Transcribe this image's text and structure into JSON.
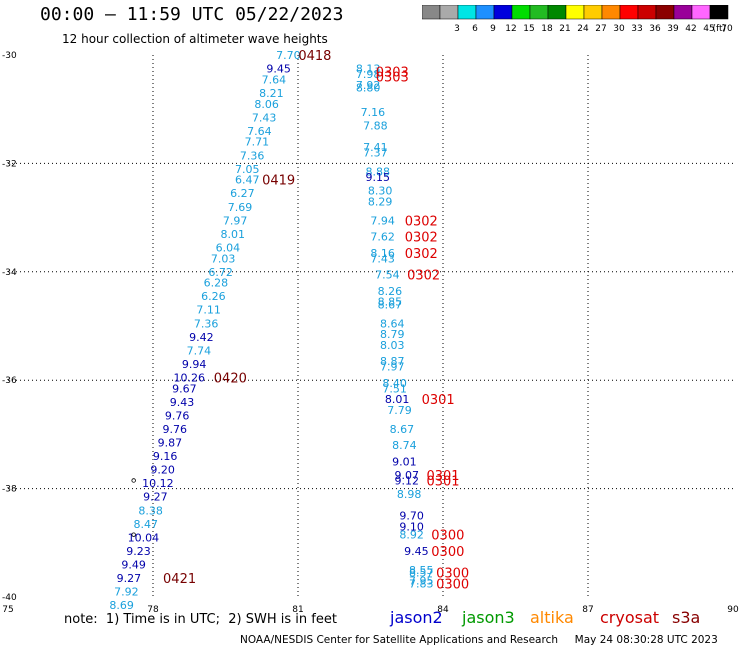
{
  "header": {
    "title": "00:00 – 11:59 UTC 05/22/2023",
    "subtitle": "12 hour collection of altimeter wave heights"
  },
  "colorbar": {
    "bins": [
      {
        "label": "",
        "color": "#888888"
      },
      {
        "label": "3",
        "color": "#aaaaaa"
      },
      {
        "label": "6",
        "color": "#00e5e5"
      },
      {
        "label": "9",
        "color": "#1e90ff"
      },
      {
        "label": "12",
        "color": "#0000dd"
      },
      {
        "label": "15",
        "color": "#00dd00"
      },
      {
        "label": "18",
        "color": "#22bb22"
      },
      {
        "label": "21",
        "color": "#008800"
      },
      {
        "label": "24",
        "color": "#ffff00"
      },
      {
        "label": "27",
        "color": "#ffcc00"
      },
      {
        "label": "30",
        "color": "#ff8800"
      },
      {
        "label": "33",
        "color": "#ff0000"
      },
      {
        "label": "36",
        "color": "#cc0000"
      },
      {
        "label": "39",
        "color": "#8b0000"
      },
      {
        "label": "42",
        "color": "#990099"
      },
      {
        "label": "45",
        "color": "#ff66ff"
      },
      {
        "label": "70",
        "color": "#000000"
      }
    ],
    "unit": "(ft)"
  },
  "legend": {
    "note": "note:  1) Time is in UTC;  2) SWH is in feet",
    "satellites": [
      {
        "name": "jason2",
        "color": "#0000cc"
      },
      {
        "name": "jason3",
        "color": "#009900"
      },
      {
        "name": "altika",
        "color": "#ff8800"
      },
      {
        "name": "cryosat",
        "color": "#cc0000"
      },
      {
        "name": "s3a",
        "color": "#880000"
      }
    ]
  },
  "credit": "NOAA/NESDIS Center for Satellite Applications and Research     May 24 08:30:28 UTC 2023",
  "colors": {
    "cyan_label": "#1aa0dc",
    "blue_label": "#0000aa",
    "red_time": "#dd0000",
    "dark_time": "#770000"
  },
  "chart_data": {
    "type": "scatter",
    "xlim": [
      75,
      90
    ],
    "ylim": [
      -40,
      -30
    ],
    "xticks": [
      "75",
      "78",
      "81",
      "84",
      "87",
      "90"
    ],
    "yticks": [
      "-30",
      "-32",
      "-34",
      "-36",
      "-38",
      "-40"
    ],
    "grid": true,
    "series": [
      {
        "points": [
          {
            "x": 80.8,
            "y": -30.0,
            "v": "7.70"
          },
          {
            "x": 80.6,
            "y": -30.25,
            "v": "9.45",
            "dark": true
          },
          {
            "x": 80.5,
            "y": -30.45,
            "v": "7.64"
          },
          {
            "x": 80.45,
            "y": -30.7,
            "v": "8.21"
          },
          {
            "x": 80.35,
            "y": -30.9,
            "v": "8.06"
          },
          {
            "x": 80.3,
            "y": -31.15,
            "v": "7.43"
          },
          {
            "x": 80.2,
            "y": -31.4,
            "v": "7.64"
          },
          {
            "x": 80.15,
            "y": -31.6,
            "v": "7.71"
          },
          {
            "x": 80.05,
            "y": -31.85,
            "v": "7.36"
          },
          {
            "x": 79.95,
            "y": -32.1,
            "v": "7.05"
          },
          {
            "x": 79.95,
            "y": -32.3,
            "v": "6.47"
          },
          {
            "x": 79.85,
            "y": -32.55,
            "v": "6.27"
          },
          {
            "x": 79.8,
            "y": -32.8,
            "v": "7.69"
          },
          {
            "x": 79.7,
            "y": -33.05,
            "v": "7.97"
          },
          {
            "x": 79.65,
            "y": -33.3,
            "v": "8.01"
          },
          {
            "x": 79.55,
            "y": -33.55,
            "v": "6.04"
          },
          {
            "x": 79.45,
            "y": -33.75,
            "v": "7.03"
          },
          {
            "x": 79.4,
            "y": -34.0,
            "v": "6.72"
          },
          {
            "x": 79.3,
            "y": -34.2,
            "v": "6.28"
          },
          {
            "x": 79.25,
            "y": -34.45,
            "v": "6.26"
          },
          {
            "x": 79.15,
            "y": -34.7,
            "v": "7.11"
          },
          {
            "x": 79.1,
            "y": -34.95,
            "v": "7.36"
          },
          {
            "x": 79.0,
            "y": -35.2,
            "v": "9.42",
            "dark": true
          },
          {
            "x": 78.95,
            "y": -35.45,
            "v": "7.74"
          },
          {
            "x": 78.85,
            "y": -35.7,
            "v": "9.94",
            "dark": true
          },
          {
            "x": 78.75,
            "y": -35.95,
            "v": "10.26",
            "dark": true
          },
          {
            "x": 78.65,
            "y": -36.15,
            "v": "9.67",
            "dark": true
          },
          {
            "x": 78.6,
            "y": -36.4,
            "v": "9.43",
            "dark": true
          },
          {
            "x": 78.5,
            "y": -36.65,
            "v": "9.76",
            "dark": true
          },
          {
            "x": 78.45,
            "y": -36.9,
            "v": "9.76",
            "dark": true
          },
          {
            "x": 78.35,
            "y": -37.15,
            "v": "9.87",
            "dark": true
          },
          {
            "x": 78.25,
            "y": -37.4,
            "v": "9.16",
            "dark": true
          },
          {
            "x": 78.2,
            "y": -37.65,
            "v": "9.20",
            "dark": true
          },
          {
            "x": 78.1,
            "y": -37.9,
            "v": "10.12",
            "dark": true
          },
          {
            "x": 78.05,
            "y": -38.15,
            "v": "9.27",
            "dark": true
          },
          {
            "x": 77.95,
            "y": -38.4,
            "v": "8.38"
          },
          {
            "x": 77.85,
            "y": -38.65,
            "v": "8.47"
          },
          {
            "x": 77.8,
            "y": -38.9,
            "v": "10.04",
            "dark": true
          },
          {
            "x": 77.7,
            "y": -39.15,
            "v": "9.23",
            "dark": true
          },
          {
            "x": 77.6,
            "y": -39.4,
            "v": "9.49",
            "dark": true
          },
          {
            "x": 77.5,
            "y": -39.65,
            "v": "9.27",
            "dark": true
          },
          {
            "x": 77.45,
            "y": -39.9,
            "v": "7.92"
          },
          {
            "x": 77.35,
            "y": -40.15,
            "v": "8.69"
          },
          {
            "x": 82.45,
            "y": -30.25,
            "v": "8.13"
          },
          {
            "x": 82.45,
            "y": -30.35,
            "v": "7.98"
          },
          {
            "x": 82.45,
            "y": -30.55,
            "v": "7.92"
          },
          {
            "x": 82.45,
            "y": -30.6,
            "v": "8.80"
          },
          {
            "x": 82.55,
            "y": -31.05,
            "v": "7.16"
          },
          {
            "x": 82.6,
            "y": -31.3,
            "v": "7.88"
          },
          {
            "x": 82.6,
            "y": -31.7,
            "v": "7.41"
          },
          {
            "x": 82.6,
            "y": -31.8,
            "v": "7.37"
          },
          {
            "x": 82.65,
            "y": -32.15,
            "v": "8.88"
          },
          {
            "x": 82.65,
            "y": -32.25,
            "v": "9.15",
            "dark": true
          },
          {
            "x": 82.7,
            "y": -32.5,
            "v": "8.30"
          },
          {
            "x": 82.7,
            "y": -32.7,
            "v": "8.29"
          },
          {
            "x": 82.75,
            "y": -33.05,
            "v": "7.94"
          },
          {
            "x": 82.75,
            "y": -33.35,
            "v": "7.62"
          },
          {
            "x": 82.75,
            "y": -33.65,
            "v": "8.16"
          },
          {
            "x": 82.75,
            "y": -33.75,
            "v": "7.43"
          },
          {
            "x": 82.85,
            "y": -34.05,
            "v": "7.54"
          },
          {
            "x": 82.9,
            "y": -34.35,
            "v": "8.26"
          },
          {
            "x": 82.9,
            "y": -34.55,
            "v": "8.85"
          },
          {
            "x": 82.9,
            "y": -34.6,
            "v": "8.67"
          },
          {
            "x": 82.95,
            "y": -34.95,
            "v": "8.64"
          },
          {
            "x": 82.95,
            "y": -35.15,
            "v": "8.79"
          },
          {
            "x": 82.95,
            "y": -35.35,
            "v": "8.03"
          },
          {
            "x": 82.95,
            "y": -35.65,
            "v": "8.87"
          },
          {
            "x": 82.95,
            "y": -35.75,
            "v": "7.97"
          },
          {
            "x": 83.0,
            "y": -36.05,
            "v": "8.40"
          },
          {
            "x": 83.0,
            "y": -36.15,
            "v": "7.51"
          },
          {
            "x": 83.05,
            "y": -36.35,
            "v": "8.01",
            "dark": true
          },
          {
            "x": 83.1,
            "y": -36.55,
            "v": "7.79"
          },
          {
            "x": 83.15,
            "y": -36.9,
            "v": "8.67"
          },
          {
            "x": 83.2,
            "y": -37.2,
            "v": "8.74"
          },
          {
            "x": 83.2,
            "y": -37.5,
            "v": "9.01",
            "dark": true
          },
          {
            "x": 83.25,
            "y": -37.75,
            "v": "9.07",
            "dark": true
          },
          {
            "x": 83.25,
            "y": -37.85,
            "v": "9.12",
            "dark": true
          },
          {
            "x": 83.3,
            "y": -38.1,
            "v": "8.98"
          },
          {
            "x": 83.35,
            "y": -38.5,
            "v": "9.70",
            "dark": true
          },
          {
            "x": 83.35,
            "y": -38.7,
            "v": "9.10",
            "dark": true
          },
          {
            "x": 83.35,
            "y": -38.85,
            "v": "8.92"
          },
          {
            "x": 83.45,
            "y": -39.15,
            "v": "9.45",
            "dark": true
          },
          {
            "x": 83.55,
            "y": -39.5,
            "v": "8.55"
          },
          {
            "x": 83.55,
            "y": -39.55,
            "v": "8.57"
          },
          {
            "x": 83.55,
            "y": -39.7,
            "v": "7.95"
          },
          {
            "x": 83.55,
            "y": -39.75,
            "v": "7.83"
          }
        ]
      }
    ],
    "time_labels": [
      {
        "x": 81.35,
        "y": -30.0,
        "t": "0418",
        "s3a": true
      },
      {
        "x": 82.95,
        "y": -30.3,
        "t": "0303"
      },
      {
        "x": 82.95,
        "y": -30.4,
        "t": "0303"
      },
      {
        "x": 80.6,
        "y": -32.3,
        "t": "0419",
        "s3a": true
      },
      {
        "x": 83.55,
        "y": -33.05,
        "t": "0302"
      },
      {
        "x": 83.55,
        "y": -33.35,
        "t": "0302"
      },
      {
        "x": 83.55,
        "y": -33.65,
        "t": "0302"
      },
      {
        "x": 83.6,
        "y": -34.05,
        "t": "0302"
      },
      {
        "x": 79.6,
        "y": -35.95,
        "t": "0420",
        "s3a": true
      },
      {
        "x": 83.9,
        "y": -36.35,
        "t": "0301"
      },
      {
        "x": 84.0,
        "y": -37.75,
        "t": "0301"
      },
      {
        "x": 84.0,
        "y": -37.85,
        "t": "0301"
      },
      {
        "x": 84.1,
        "y": -38.85,
        "t": "0300"
      },
      {
        "x": 84.1,
        "y": -39.15,
        "t": "0300"
      },
      {
        "x": 84.2,
        "y": -39.55,
        "t": "0300"
      },
      {
        "x": 84.2,
        "y": -39.75,
        "t": "0300"
      },
      {
        "x": 78.55,
        "y": -39.65,
        "t": "0421",
        "s3a": true
      }
    ],
    "marks": [
      {
        "x": 77.6,
        "y": -37.85
      },
      {
        "x": 77.6,
        "y": -38.85
      }
    ]
  }
}
